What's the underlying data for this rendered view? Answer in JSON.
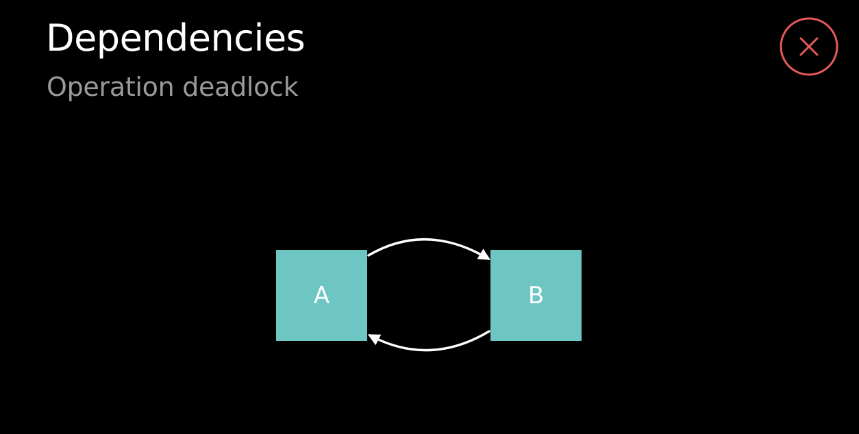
{
  "header": {
    "title": "Dependencies",
    "subtitle": "Operation deadlock"
  },
  "close_button": {
    "icon": "close-icon",
    "color": "#e85a5a"
  },
  "diagram": {
    "nodes": [
      {
        "label": "A"
      },
      {
        "label": "B"
      }
    ],
    "edges": [
      {
        "from": "A",
        "to": "B"
      },
      {
        "from": "B",
        "to": "A"
      }
    ]
  },
  "colors": {
    "background": "#000000",
    "title": "#ffffff",
    "subtitle": "#9a9a9a",
    "node_fill": "#6dc6c2",
    "arrow": "#ffffff"
  }
}
